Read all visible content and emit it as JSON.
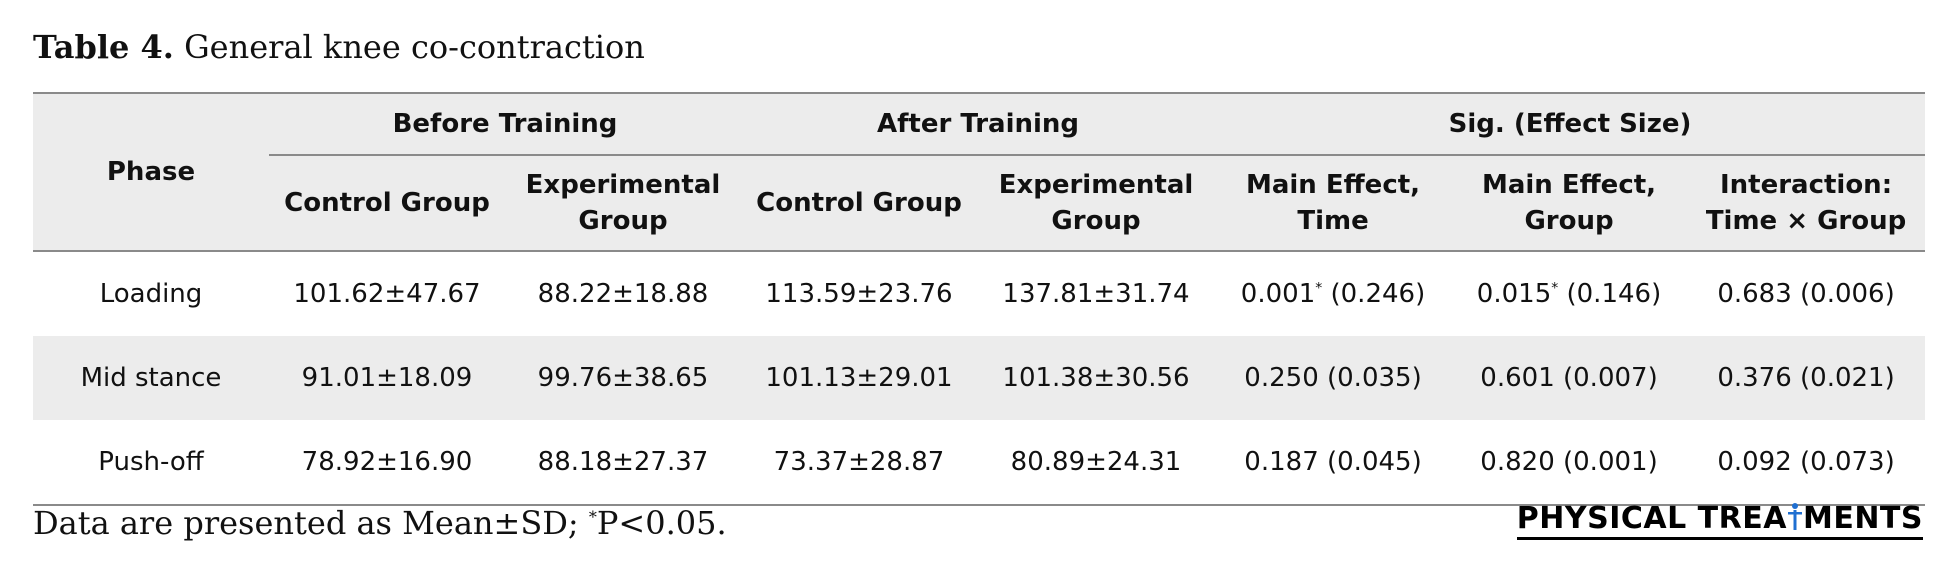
{
  "caption": {
    "label": "Table 4.",
    "text": "General knee co-contraction"
  },
  "table": {
    "phase_header": "Phase",
    "groups": [
      {
        "label": "Before Training"
      },
      {
        "label": "After Training"
      },
      {
        "label": "Sig. (Effect Size)"
      }
    ],
    "subheaders": [
      {
        "line1": "Control Group",
        "line2": ""
      },
      {
        "line1": "Experimental",
        "line2": "Group"
      },
      {
        "line1": "Control Group",
        "line2": ""
      },
      {
        "line1": "Experimental",
        "line2": "Group"
      },
      {
        "line1": "Main Effect,",
        "line2": "Time"
      },
      {
        "line1": "Main Effect,",
        "line2": "Group"
      },
      {
        "line1": "Interaction:",
        "line2": "Time × Group"
      }
    ],
    "rows": [
      {
        "phase": "Loading",
        "before_control": "101.62±47.67",
        "before_experimental": "88.22±18.88",
        "after_control": "113.59±23.76",
        "after_experimental": "137.81±31.74",
        "time_value": "0.001",
        "time_mark": "*",
        "time_effect": " (0.246)",
        "group_value": "0.015",
        "group_mark": "*",
        "group_effect": " (0.146)",
        "interaction": "0.683 (0.006)"
      },
      {
        "phase": "Mid stance",
        "before_control": "91.01±18.09",
        "before_experimental": "99.76±38.65",
        "after_control": "101.13±29.01",
        "after_experimental": "101.38±30.56",
        "time_value": "0.250 (0.035)",
        "time_mark": "",
        "time_effect": "",
        "group_value": "0.601 (0.007)",
        "group_mark": "",
        "group_effect": "",
        "interaction": "0.376 (0.021)"
      },
      {
        "phase": "Push-off",
        "before_control": "78.92±16.90",
        "before_experimental": "88.18±27.37",
        "after_control": "73.37±28.87",
        "after_experimental": "80.89±24.31",
        "time_value": "0.187 (0.045)",
        "time_mark": "",
        "time_effect": "",
        "group_value": "0.820 (0.001)",
        "group_mark": "",
        "group_effect": "",
        "interaction": "0.092 (0.073)"
      }
    ]
  },
  "footnote": {
    "prefix": "Data are presented as Mean±SD; ",
    "mark": "*",
    "suffix": "P<0.05."
  },
  "logo": {
    "part1": "PHYSICAL TREA",
    "icon": "human-figure-icon",
    "part2": "MENTS"
  }
}
